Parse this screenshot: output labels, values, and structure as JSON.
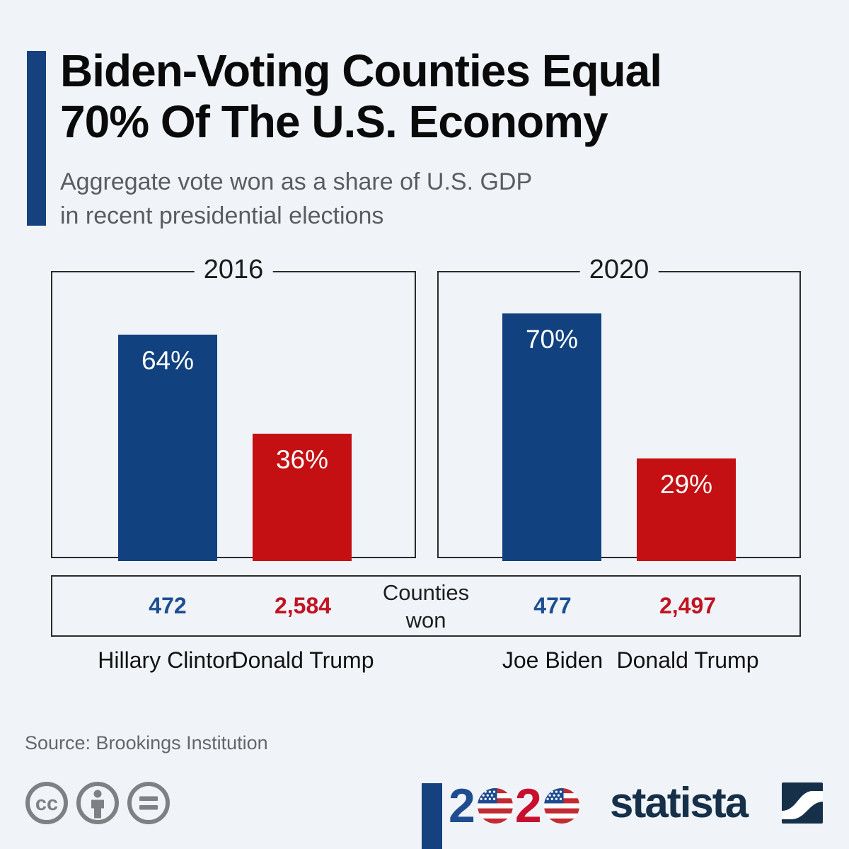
{
  "page": {
    "background": "#f0f4f8"
  },
  "header": {
    "title_lines": [
      "Biden-Voting Counties Equal",
      "70% Of The U.S. Economy"
    ],
    "subtitle_lines": [
      "Aggregate vote won as a share of U.S. GDP",
      "in recent presidential elections"
    ],
    "accent_color": "#15427e"
  },
  "chart_data": {
    "type": "bar",
    "unit": "percent of U.S. GDP",
    "middle_label": "Counties won",
    "panels": [
      {
        "year": "2016",
        "bars": [
          {
            "candidate": "Hillary Clinton",
            "value_pct": 64,
            "label": "64%",
            "counties_won": "472",
            "color": "#11417f"
          },
          {
            "candidate": "Donald Trump",
            "value_pct": 36,
            "label": "36%",
            "counties_won": "2,584",
            "color": "#c41013"
          }
        ]
      },
      {
        "year": "2020",
        "bars": [
          {
            "candidate": "Joe Biden",
            "value_pct": 70,
            "label": "70%",
            "counties_won": "477",
            "color": "#11417f"
          },
          {
            "candidate": "Donald Trump",
            "value_pct": 29,
            "label": "29%",
            "counties_won": "2,497",
            "color": "#c41013"
          }
        ]
      }
    ],
    "ylim": [
      0,
      80
    ],
    "grid": false,
    "legend": false
  },
  "footer": {
    "source": "Source: Brookings Institution",
    "license_icons": [
      "cc-icon",
      "attribution-person-icon",
      "no-derivatives-equals-icon"
    ],
    "election_logo": {
      "digits": [
        "2",
        "0",
        "2",
        "0"
      ],
      "digit_blue": "#1e4c8f",
      "digit_red": "#c8102e",
      "flag_red": "#c22b31",
      "flag_blue": "#1e4c8f"
    },
    "brand": {
      "wordmark": "statista",
      "navy": "#16304a"
    }
  }
}
